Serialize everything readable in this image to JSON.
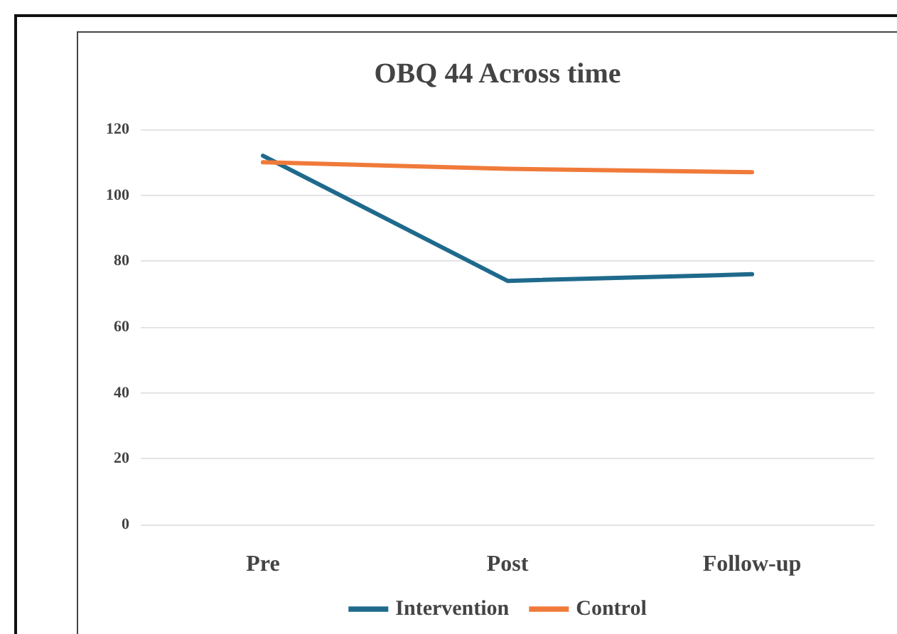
{
  "chart_data": {
    "type": "line",
    "title": "OBQ 44 Across time",
    "categories": [
      "Pre",
      "Post",
      "Follow-up"
    ],
    "series": [
      {
        "name": "Intervention",
        "color": "#1f6a8c",
        "values": [
          112,
          74,
          76
        ]
      },
      {
        "name": "Control",
        "color": "#f07a3a",
        "values": [
          110,
          108,
          107
        ]
      }
    ],
    "ylim": [
      0,
      120
    ],
    "yticks": [
      0,
      20,
      40,
      60,
      80,
      100,
      120
    ],
    "grid": "y",
    "legend": "bottom",
    "marker": "none",
    "line_style": "solid"
  }
}
